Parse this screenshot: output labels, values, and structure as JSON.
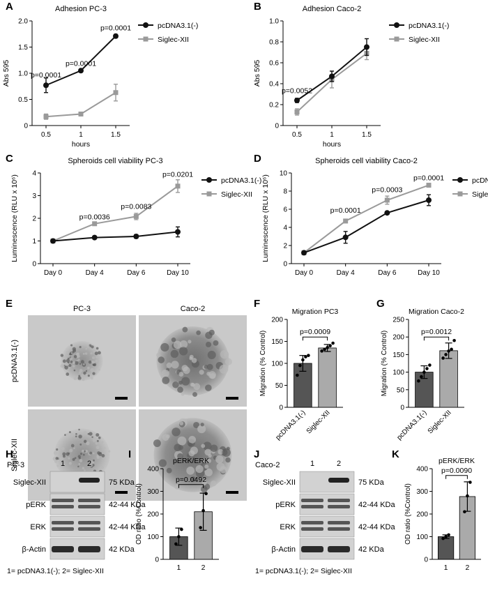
{
  "panel_letters": {
    "A": "A",
    "B": "B",
    "C": "C",
    "D": "D",
    "E": "E",
    "F": "F",
    "G": "G",
    "H": "H",
    "I": "I",
    "J": "J",
    "K": "K"
  },
  "colors": {
    "ctrl": "#111111",
    "siglec": "#9a9a9a",
    "bar_dark": "#555555",
    "bar_light": "#aaaaaa"
  },
  "legend_labels": [
    "pcDNA3.1(-)",
    "Siglec-XII"
  ],
  "line_charts": [
    {
      "id": "A",
      "title": "Adhesion  PC-3",
      "xlabel": "hours",
      "ylabel": "Abs 595",
      "ticks": [
        "0.5",
        "1",
        "1.5"
      ],
      "ylim": [
        0,
        2.0
      ],
      "yticks": [
        "0",
        "0.5",
        "1.0",
        "1.5",
        "2.0"
      ],
      "ctrl": [
        0.77,
        1.05,
        1.71
      ],
      "ctrl_err": [
        0.14,
        0.02,
        0.03
      ],
      "siglec": [
        0.17,
        0.22,
        0.63
      ],
      "siglec_err": [
        0.05,
        0.02,
        0.16
      ],
      "pvals": [
        "p=0.0001",
        "p=0.0001",
        "p=0.0001"
      ],
      "pv_y": [
        0.92,
        1.14,
        1.82
      ]
    },
    {
      "id": "B",
      "title": "Adhesion Caco-2",
      "xlabel": "hours",
      "ylabel": "Abs 595",
      "ticks": [
        "0.5",
        "1",
        "1.5"
      ],
      "ylim": [
        0,
        1.0
      ],
      "yticks": [
        "0",
        "0.2",
        "0.4",
        "0.6",
        "0.8",
        "1.0"
      ],
      "ctrl": [
        0.24,
        0.47,
        0.75
      ],
      "ctrl_err": [
        0.02,
        0.05,
        0.08
      ],
      "siglec": [
        0.13,
        0.44,
        0.69
      ],
      "siglec_err": [
        0.03,
        0.08,
        0.06
      ],
      "pvals": [
        "p=0.0052",
        "",
        ""
      ],
      "pv_y": [
        0.31,
        0,
        0
      ]
    },
    {
      "id": "C",
      "title": "Spheroids cell viability PC-3",
      "xlabel": "",
      "ylabel": "Luminescence (RLU x 10⁶)",
      "ticks": [
        "Day 0",
        "Day 4",
        "Day 6",
        "Day 10"
      ],
      "ylim": [
        0,
        4
      ],
      "yticks": [
        "0",
        "1",
        "2",
        "3",
        "4"
      ],
      "ctrl": [
        1.0,
        1.15,
        1.2,
        1.4
      ],
      "ctrl_err": [
        0.03,
        0.04,
        0.08,
        0.22
      ],
      "siglec": [
        1.0,
        1.76,
        2.08,
        3.42
      ],
      "siglec_err": [
        0.03,
        0.06,
        0.14,
        0.28
      ],
      "pvals": [
        "",
        "p=0.0036",
        "p=0.0083",
        "p=0.0201"
      ],
      "pv_y": [
        0,
        1.96,
        2.42,
        3.83
      ]
    },
    {
      "id": "D",
      "title": "Spheroids cell viability Caco-2",
      "xlabel": "",
      "ylabel": "Luminescence (RLU x 10⁶)",
      "ticks": [
        "Day 0",
        "Day 4",
        "Day 6",
        "Day 10"
      ],
      "ylim": [
        0,
        10
      ],
      "yticks": [
        "0",
        "2",
        "4",
        "6",
        "8",
        "10"
      ],
      "ctrl": [
        1.2,
        2.9,
        5.6,
        7.0
      ],
      "ctrl_err": [
        0.05,
        0.65,
        0.1,
        0.6
      ],
      "siglec": [
        1.2,
        4.7,
        7.0,
        8.65
      ],
      "siglec_err": [
        0.05,
        0.2,
        0.45,
        0.1
      ],
      "pvals": [
        "",
        "p=0.0001",
        "p=0.0003",
        "p=0.0001"
      ],
      "pv_y": [
        0,
        5.6,
        7.9,
        9.2
      ]
    }
  ],
  "micrographs": {
    "cols": [
      "PC-3",
      "Caco-2"
    ],
    "rows": [
      "pcDNA3.1(-)",
      "Siglec-XII"
    ]
  },
  "bar_charts": [
    {
      "id": "F",
      "title": "Migration PC3",
      "ylabel": "Migration (% Control)",
      "categories": [
        "pcDNA3.1(-)",
        "Siglec-XII"
      ],
      "rotated": true,
      "values": [
        100,
        135
      ],
      "err": [
        18,
        8
      ],
      "ylim": [
        0,
        200
      ],
      "yticks": [
        "0",
        "50",
        "100",
        "150",
        "200"
      ],
      "pval": "p=0.0009",
      "pv_y": 160,
      "points": [
        [
          73,
          95,
          108,
          115,
          118
        ],
        [
          128,
          132,
          136,
          140,
          146
        ]
      ]
    },
    {
      "id": "G",
      "title": "Migration Caco-2",
      "ylabel": "Migration (% Control)",
      "categories": [
        "pcDNA3.1(-)",
        "Siglec-XII"
      ],
      "rotated": true,
      "values": [
        100,
        161
      ],
      "err": [
        18,
        22
      ],
      "ylim": [
        0,
        250
      ],
      "yticks": [
        "0",
        "50",
        "100",
        "150",
        "200",
        "250"
      ],
      "pval": "p=0.0012",
      "pv_y": 200,
      "points": [
        [
          75,
          87,
          100,
          110,
          120
        ],
        [
          140,
          150,
          160,
          165,
          190
        ]
      ]
    },
    {
      "id": "I",
      "title": "pERK/ERK",
      "ylabel": "OD ratio (%Control)",
      "categories": [
        "1",
        "2"
      ],
      "rotated": false,
      "values": [
        100,
        210
      ],
      "err": [
        38,
        82
      ],
      "ylim": [
        0,
        400
      ],
      "yticks": [
        "0",
        "100",
        "200",
        "300",
        "400"
      ],
      "pval": "p=0.0492",
      "pv_y": 330,
      "points": [
        [
          68,
          100,
          132
        ],
        [
          140,
          215,
          290
        ]
      ]
    },
    {
      "id": "K",
      "title": "pERK/ERK",
      "ylabel": "OD ratio (%Control)",
      "categories": [
        "1",
        "2"
      ],
      "rotated": false,
      "values": [
        100,
        277
      ],
      "err": [
        8,
        65
      ],
      "ylim": [
        0,
        400
      ],
      "yticks": [
        "0",
        "100",
        "200",
        "300",
        "400"
      ],
      "pval": "p=0.0090",
      "pv_y": 370,
      "points": [
        [
          92,
          100,
          108
        ],
        [
          210,
          280,
          340
        ]
      ]
    }
  ],
  "blots": [
    {
      "id": "H",
      "cell": "PC-3",
      "lanes": [
        "1",
        "2"
      ],
      "rows": [
        {
          "name": "Siglec-XII",
          "size": "75 KDa"
        },
        {
          "name": "pERK",
          "size": "42-44 KDa"
        },
        {
          "name": "ERK",
          "size": "42-44 KDa"
        },
        {
          "name": "β-Actin",
          "size": "42 KDa"
        }
      ],
      "legend": "1= pcDNA3.1(-); 2= Siglec-XII"
    },
    {
      "id": "J",
      "cell": "Caco-2",
      "lanes": [
        "1",
        "2"
      ],
      "rows": [
        {
          "name": "Siglec-XII",
          "size": "75 KDa"
        },
        {
          "name": "pERK",
          "size": "42-44 KDa"
        },
        {
          "name": "ERK",
          "size": "42-44 KDa"
        },
        {
          "name": "β-Actin",
          "size": "42 KDa"
        }
      ],
      "legend": "1= pcDNA3.1(-); 2= Siglec-XII"
    }
  ]
}
